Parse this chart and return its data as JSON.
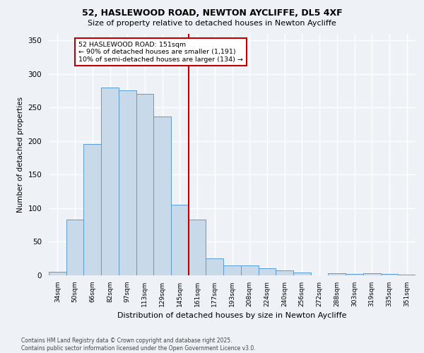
{
  "title_line1": "52, HASLEWOOD ROAD, NEWTON AYCLIFFE, DL5 4XF",
  "title_line2": "Size of property relative to detached houses in Newton Aycliffe",
  "xlabel": "Distribution of detached houses by size in Newton Aycliffe",
  "ylabel": "Number of detached properties",
  "footer_line1": "Contains HM Land Registry data © Crown copyright and database right 2025.",
  "footer_line2": "Contains public sector information licensed under the Open Government Licence v3.0.",
  "annotation_line1": "52 HASLEWOOD ROAD: 151sqm",
  "annotation_line2": "← 90% of detached houses are smaller (1,191)",
  "annotation_line3": "10% of semi-detached houses are larger (134) →",
  "categories": [
    "34sqm",
    "50sqm",
    "66sqm",
    "82sqm",
    "97sqm",
    "113sqm",
    "129sqm",
    "145sqm",
    "161sqm",
    "177sqm",
    "193sqm",
    "208sqm",
    "224sqm",
    "240sqm",
    "256sqm",
    "272sqm",
    "288sqm",
    "303sqm",
    "319sqm",
    "335sqm",
    "351sqm"
  ],
  "values": [
    5,
    83,
    195,
    280,
    275,
    270,
    236,
    105,
    83,
    25,
    15,
    15,
    10,
    7,
    4,
    0,
    3,
    2,
    3,
    2,
    1
  ],
  "bar_color": "#c8d9ea",
  "bar_edge_color": "#5b9bd5",
  "vline_color": "#c00000",
  "vline_index": 7,
  "ylim": [
    0,
    360
  ],
  "yticks": [
    0,
    50,
    100,
    150,
    200,
    250,
    300,
    350
  ],
  "bg_color": "#eef2f7",
  "plot_bg_color": "#eef2f7",
  "grid_color": "#ffffff",
  "annotation_box_edge_color": "#c00000",
  "figwidth": 6.0,
  "figheight": 5.0,
  "dpi": 100
}
